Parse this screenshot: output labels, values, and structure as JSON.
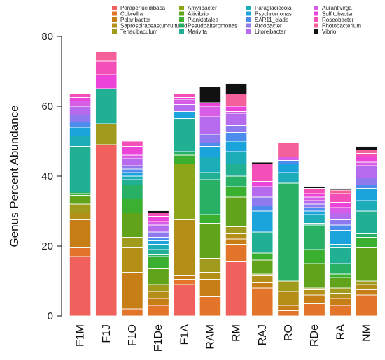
{
  "chart_data": {
    "type": "bar",
    "stacked": true,
    "ylabel": "Genus Percent Abundance",
    "ylim": [
      0,
      80
    ],
    "yticks": [
      0,
      20,
      40,
      60,
      80
    ],
    "grid": false,
    "legend_position": "top",
    "categories": [
      "F1M",
      "F1J",
      "F1O",
      "F1De",
      "F1A",
      "RAM",
      "RM",
      "RAJ",
      "RO",
      "RDe",
      "RA",
      "NM"
    ],
    "series": [
      {
        "name": "Paraperlucidibaca",
        "color": "#F0605D",
        "values": [
          17,
          49,
          0,
          0,
          9,
          0,
          15.5,
          0,
          0,
          0,
          0,
          0
        ]
      },
      {
        "name": "Colwellia",
        "color": "#E2752A",
        "values": [
          2.5,
          0,
          2,
          3,
          1.5,
          5.5,
          5,
          8,
          1.5,
          3.5,
          3,
          6
        ]
      },
      {
        "name": "Polaribacter",
        "color": "#C77E16",
        "values": [
          8,
          0,
          10.5,
          2,
          1,
          5,
          1.5,
          1.5,
          1.5,
          2.5,
          2,
          1.5
        ]
      },
      {
        "name": "Saprospiraceae;uncultured",
        "color": "#B38F18",
        "values": [
          2,
          0,
          7,
          2,
          16,
          2,
          1.5,
          2,
          4,
          1.5,
          1.5,
          1.5
        ]
      },
      {
        "name": "Tenacibaculum",
        "color": "#A09B1C",
        "values": [
          2.5,
          6,
          3,
          2,
          0,
          4,
          2,
          0.5,
          3,
          0.5,
          1.5,
          1
        ]
      },
      {
        "name": "Amylibacter",
        "color": "#8CA61A",
        "values": [
          0,
          0,
          0,
          0,
          16,
          0,
          0,
          0,
          0,
          0,
          0,
          0
        ]
      },
      {
        "name": "Aliivibrio",
        "color": "#62A31C",
        "values": [
          2.5,
          0,
          7,
          4.5,
          0,
          10,
          8.5,
          4,
          0,
          7,
          3,
          9.5
        ]
      },
      {
        "name": "Planktotalea",
        "color": "#3BAF2F",
        "values": [
          0.5,
          0,
          4,
          3.5,
          2.5,
          2.5,
          3,
          2,
          0,
          4,
          1,
          3
        ]
      },
      {
        "name": "Pseudoalteromonas",
        "color": "#28B064",
        "values": [
          0.5,
          0,
          4,
          0.5,
          1,
          10,
          3,
          0,
          28,
          7,
          3,
          1
        ]
      },
      {
        "name": "Marivita",
        "color": "#22B095",
        "values": [
          13,
          10,
          1.5,
          1.5,
          9.5,
          2,
          3.5,
          6,
          0,
          0.5,
          4.5,
          6.5
        ]
      },
      {
        "name": "Paraglaciecola",
        "color": "#1DADB8",
        "values": [
          3,
          0,
          1,
          1.5,
          0,
          4.5,
          3.5,
          0,
          3,
          2.5,
          1,
          3
        ]
      },
      {
        "name": "Psychromonas",
        "color": "#1BA3DC",
        "values": [
          2.5,
          0,
          1,
          1,
          2,
          3,
          3,
          6,
          2.5,
          1,
          4,
          3.5
        ]
      },
      {
        "name": "SAR11_clade",
        "color": "#4B8CEC",
        "values": [
          1.5,
          0,
          1,
          1,
          0,
          1,
          2.5,
          1.5,
          1,
          1,
          1.5,
          1
        ]
      },
      {
        "name": "Arcobacter",
        "color": "#8E79EE",
        "values": [
          2,
          0,
          1,
          1.5,
          0,
          2.5,
          2,
          2.5,
          0,
          1,
          1.5,
          2
        ]
      },
      {
        "name": "Litoreibacter",
        "color": "#B66BEE",
        "values": [
          2.5,
          0,
          2,
          2,
          2,
          5,
          3.5,
          3,
          0,
          1,
          2,
          3.5
        ]
      },
      {
        "name": "Aurantivirga",
        "color": "#D75DE7",
        "values": [
          1.5,
          0,
          1,
          1,
          1.5,
          3,
          0.5,
          0,
          1,
          1,
          1.5,
          1
        ]
      },
      {
        "name": "Sulfitobacter",
        "color": "#EC44D9",
        "values": [
          1,
          4,
          2.5,
          1.5,
          0.5,
          1,
          1.5,
          1.5,
          0,
          1,
          1.5,
          1.5
        ]
      },
      {
        "name": "Roseobacter",
        "color": "#F44FB8",
        "values": [
          1,
          4,
          1.5,
          1,
          1,
          0,
          0,
          5,
          0,
          1.5,
          2.5,
          1
        ]
      },
      {
        "name": "Photobacterium",
        "color": "#F4619A",
        "values": [
          0,
          2.5,
          0,
          0,
          0,
          0,
          3.5,
          0,
          4,
          0,
          1,
          1
        ]
      },
      {
        "name": "Vibrio",
        "color": "#111111",
        "values": [
          0,
          0,
          0,
          0.6,
          0,
          4.5,
          3,
          0.5,
          0,
          0.6,
          0.5,
          1
        ]
      }
    ]
  }
}
